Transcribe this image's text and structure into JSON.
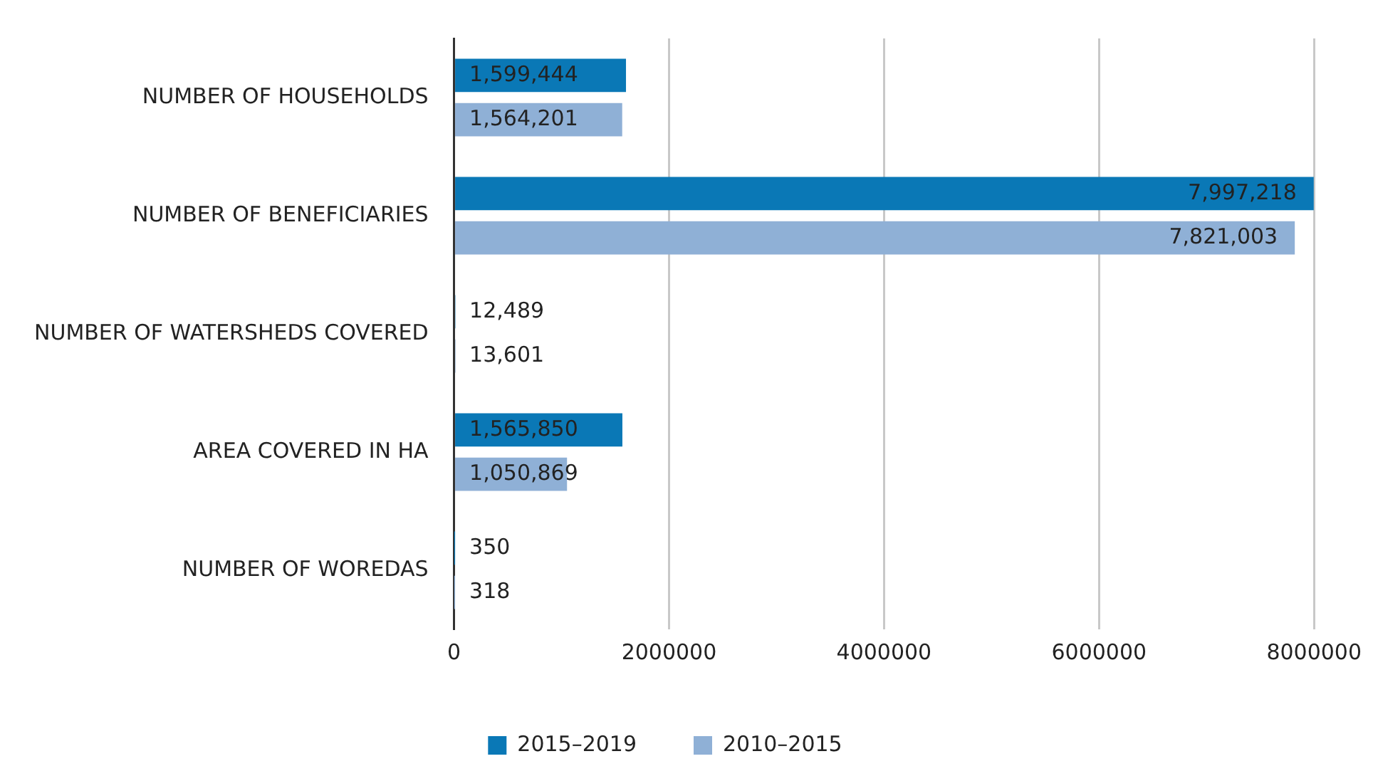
{
  "chart_data": {
    "type": "bar",
    "orientation": "horizontal",
    "categories": [
      "NUMBER OF HOUSEHOLDS",
      "NUMBER OF BENEFICIARIES",
      "NUMBER OF WATERSHEDS COVERED",
      "AREA COVERED IN HA",
      "NUMBER OF WOREDAS"
    ],
    "series": [
      {
        "name": "2015–2019",
        "color": "#0a78b6",
        "values": [
          1599444,
          7997218,
          12489,
          1565850,
          350
        ],
        "value_labels": [
          "1,599,444",
          "7,997,218",
          "12,489",
          "1,565,850",
          "350"
        ]
      },
      {
        "name": "2010–2015",
        "color": "#8fb0d6",
        "values": [
          1564201,
          7821003,
          13601,
          1050869,
          318
        ],
        "value_labels": [
          "1,564,201",
          "7,821,003",
          "13,601",
          "1,050,869",
          "318"
        ]
      }
    ],
    "xlim": [
      0,
      8000000
    ],
    "xticks": [
      0,
      2000000,
      4000000,
      6000000,
      8000000
    ],
    "grid": "x",
    "legend": "bottom"
  }
}
